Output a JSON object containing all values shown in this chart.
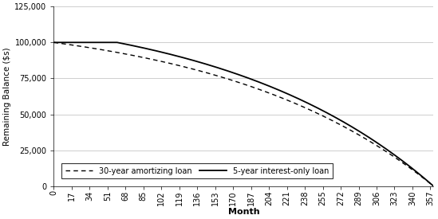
{
  "loan_amount": 100000,
  "annual_rate": 0.06,
  "total_months": 360,
  "interest_only_months": 60,
  "xticks": [
    0,
    17,
    34,
    51,
    68,
    85,
    102,
    119,
    136,
    153,
    170,
    187,
    204,
    221,
    238,
    255,
    272,
    289,
    306,
    323,
    340,
    357
  ],
  "yticks": [
    0,
    25000,
    50000,
    75000,
    100000,
    125000
  ],
  "ylim": [
    0,
    125000
  ],
  "xlim": [
    0,
    360
  ],
  "xlabel": "Month",
  "ylabel": "Remaining Balance ($s)",
  "amortizing_label": "30-year amortizing loan",
  "interest_only_label": "5-year interest-only loan",
  "amortizing_color": "#000000",
  "interest_only_color": "#000000",
  "background_color": "#ffffff",
  "grid_color": "#bbbbbb",
  "legend_fontsize": 7.0,
  "axis_label_fontsize": 8.0,
  "tick_fontsize": 7.0
}
